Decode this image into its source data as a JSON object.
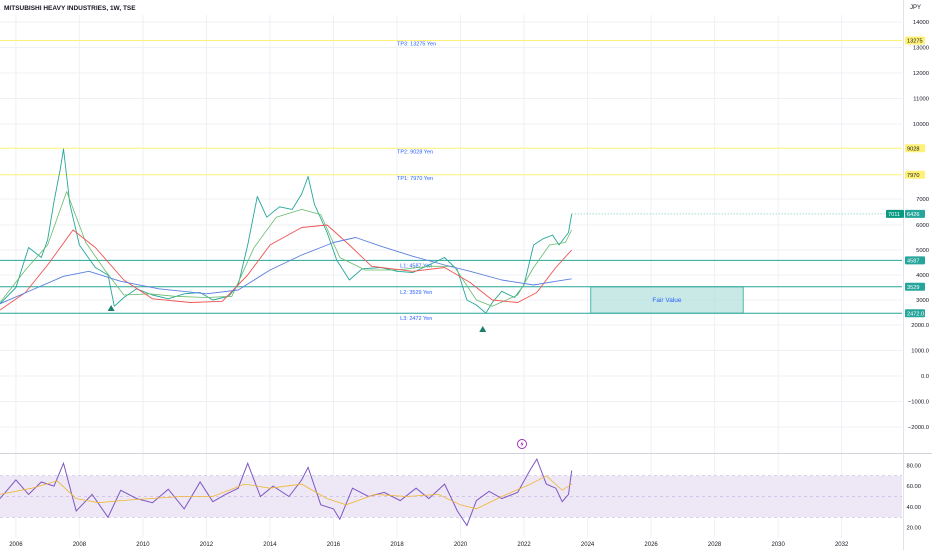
{
  "header": {
    "title": "MITSUBISHI HEAVY INDUSTRIES, 1W, TSE",
    "currency": "JPY"
  },
  "colors": {
    "grid": "#eef0f4",
    "target": "#fff176",
    "level": "#26a69a",
    "price": "#26a69a",
    "sma_fast": "#66bb6a",
    "sma_mid": "#ef5350",
    "sma_slow": "#5b7fe0",
    "label_text": "#2962ff",
    "zone_fill": "#b2dfdb",
    "rsi": "#7e57c2",
    "rsi_band": "#ede7f6",
    "rsi_ma": "#f0b72f",
    "axis_text": "#131722",
    "badge": "#26a69a"
  },
  "chart_data": [
    {
      "type": "line",
      "panel": "price",
      "x_range": [
        2005.5,
        2033.9
      ],
      "x_ticks": [
        "2006",
        "2008",
        "2010",
        "2012",
        "2014",
        "2016",
        "2018",
        "2020",
        "2022",
        "2024",
        "2026",
        "2028",
        "2030",
        "2032"
      ],
      "y_ticks": [
        "14000",
        "13000",
        "12000",
        "11000",
        "10000",
        "7000",
        "6000",
        "5000",
        "4000",
        "3000",
        "2000.0",
        "1000.0",
        "0.0",
        "−1000.0",
        "−2000.0"
      ],
      "y_breaks": [
        [
          -2000,
          0,
          2000,
          3000,
          4000,
          5000,
          6000,
          7000,
          8000,
          10000,
          14000
        ]
      ],
      "series": [
        {
          "role": "price",
          "points": [
            [
              2005.5,
              2850
            ],
            [
              2006.0,
              3500
            ],
            [
              2006.4,
              5100
            ],
            [
              2006.8,
              4700
            ],
            [
              2007.0,
              5400
            ],
            [
              2007.2,
              6900
            ],
            [
              2007.4,
              8200
            ],
            [
              2007.5,
              9000
            ],
            [
              2007.7,
              6800
            ],
            [
              2008.0,
              5200
            ],
            [
              2008.5,
              4300
            ],
            [
              2008.9,
              4000
            ],
            [
              2009.1,
              2750
            ],
            [
              2009.4,
              3100
            ],
            [
              2009.8,
              3450
            ],
            [
              2010.3,
              3200
            ],
            [
              2010.8,
              3050
            ],
            [
              2011.3,
              3250
            ],
            [
              2011.8,
              3300
            ],
            [
              2012.2,
              3000
            ],
            [
              2012.7,
              3150
            ],
            [
              2013.0,
              3600
            ],
            [
              2013.3,
              5200
            ],
            [
              2013.6,
              7100
            ],
            [
              2013.9,
              6300
            ],
            [
              2014.3,
              6700
            ],
            [
              2014.7,
              6600
            ],
            [
              2015.0,
              7200
            ],
            [
              2015.2,
              7900
            ],
            [
              2015.4,
              6800
            ],
            [
              2015.8,
              5700
            ],
            [
              2016.1,
              4600
            ],
            [
              2016.5,
              3800
            ],
            [
              2016.9,
              4250
            ],
            [
              2017.5,
              4300
            ],
            [
              2018.0,
              4150
            ],
            [
              2018.5,
              4100
            ],
            [
              2019.0,
              4400
            ],
            [
              2019.5,
              4700
            ],
            [
              2019.9,
              4200
            ],
            [
              2020.2,
              3000
            ],
            [
              2020.5,
              2800
            ],
            [
              2020.8,
              2472
            ],
            [
              2021.0,
              2900
            ],
            [
              2021.3,
              3350
            ],
            [
              2021.7,
              3100
            ],
            [
              2022.0,
              3600
            ],
            [
              2022.3,
              5200
            ],
            [
              2022.6,
              5450
            ],
            [
              2022.9,
              5600
            ],
            [
              2023.1,
              5200
            ],
            [
              2023.4,
              5700
            ],
            [
              2023.5,
              6426
            ]
          ]
        },
        {
          "role": "sma_fast",
          "points": [
            [
              2005.5,
              2900
            ],
            [
              2006.3,
              4200
            ],
            [
              2007.0,
              5200
            ],
            [
              2007.6,
              7300
            ],
            [
              2008.2,
              5300
            ],
            [
              2008.8,
              4200
            ],
            [
              2009.4,
              3200
            ],
            [
              2010.2,
              3250
            ],
            [
              2011.0,
              3150
            ],
            [
              2012.0,
              3100
            ],
            [
              2012.8,
              3150
            ],
            [
              2013.5,
              5100
            ],
            [
              2014.2,
              6300
            ],
            [
              2015.0,
              6600
            ],
            [
              2015.6,
              6400
            ],
            [
              2016.2,
              4700
            ],
            [
              2017.0,
              4200
            ],
            [
              2018.0,
              4200
            ],
            [
              2019.0,
              4350
            ],
            [
              2019.8,
              4350
            ],
            [
              2020.5,
              3000
            ],
            [
              2021.0,
              2750
            ],
            [
              2021.8,
              3200
            ],
            [
              2022.3,
              4300
            ],
            [
              2022.8,
              5200
            ],
            [
              2023.3,
              5300
            ],
            [
              2023.5,
              5800
            ]
          ]
        },
        {
          "role": "sma_mid",
          "points": [
            [
              2005.5,
              2600
            ],
            [
              2006.3,
              3300
            ],
            [
              2007.0,
              4400
            ],
            [
              2007.8,
              5800
            ],
            [
              2008.5,
              5100
            ],
            [
              2009.4,
              3800
            ],
            [
              2010.3,
              3050
            ],
            [
              2011.5,
              2900
            ],
            [
              2012.5,
              2950
            ],
            [
              2013.3,
              4000
            ],
            [
              2014.0,
              5200
            ],
            [
              2015.0,
              5900
            ],
            [
              2015.8,
              6000
            ],
            [
              2016.5,
              5200
            ],
            [
              2017.2,
              4350
            ],
            [
              2018.5,
              4150
            ],
            [
              2019.5,
              4300
            ],
            [
              2020.3,
              3700
            ],
            [
              2021.0,
              3000
            ],
            [
              2021.8,
              2900
            ],
            [
              2022.4,
              3300
            ],
            [
              2023.0,
              4300
            ],
            [
              2023.5,
              5000
            ]
          ]
        },
        {
          "role": "sma_slow",
          "points": [
            [
              2005.5,
              2850
            ],
            [
              2006.5,
              3400
            ],
            [
              2007.5,
              3950
            ],
            [
              2008.3,
              4150
            ],
            [
              2009.3,
              3750
            ],
            [
              2010.5,
              3450
            ],
            [
              2012.0,
              3250
            ],
            [
              2013.0,
              3400
            ],
            [
              2014.0,
              4200
            ],
            [
              2015.0,
              4800
            ],
            [
              2016.0,
              5300
            ],
            [
              2016.7,
              5500
            ],
            [
              2017.5,
              5150
            ],
            [
              2018.5,
              4750
            ],
            [
              2019.5,
              4400
            ],
            [
              2020.3,
              4150
            ],
            [
              2021.3,
              3800
            ],
            [
              2022.3,
              3600
            ],
            [
              2023.0,
              3750
            ],
            [
              2023.5,
              3850
            ]
          ]
        }
      ],
      "horizontal_levels": [
        {
          "label": "TP3: 13275 Yen",
          "value": 13275,
          "badge": "13275",
          "role": "target"
        },
        {
          "label": "TP2: 9028 Yen",
          "value": 9028,
          "badge": "9028",
          "role": "target"
        },
        {
          "label": "TP1: 7970 Yen",
          "value": 7970,
          "badge": "7970",
          "role": "target"
        },
        {
          "label": "L1: 4587 Yen",
          "value": 4587,
          "badge": "4587",
          "role": "level"
        },
        {
          "label": "L2: 3529 Yen",
          "value": 3529,
          "badge": "3529",
          "role": "level"
        },
        {
          "label": "L3: 2472 Yen",
          "value": 2472,
          "badge": "2472.0",
          "role": "level"
        }
      ],
      "current_value_badges": [
        "7011",
        "6426"
      ],
      "zone": {
        "label": "Fair Value",
        "x_start": 2024.1,
        "x_end": 2028.9,
        "y_low": 2472,
        "y_high": 3529
      },
      "markers": [
        {
          "x": 2009.0,
          "shape": "triangle-up"
        },
        {
          "x": 2020.7,
          "shape": "triangle-up"
        }
      ]
    },
    {
      "type": "line",
      "panel": "rsi",
      "y_ticks": [
        "80.00",
        "60.00",
        "40.00",
        "20.00"
      ],
      "band": [
        30,
        70
      ],
      "series": [
        {
          "role": "rsi",
          "values": [
            [
              2005.5,
              48
            ],
            [
              2006.0,
              66
            ],
            [
              2006.4,
              52
            ],
            [
              2006.8,
              64
            ],
            [
              2007.2,
              60
            ],
            [
              2007.5,
              82
            ],
            [
              2007.9,
              36
            ],
            [
              2008.4,
              52
            ],
            [
              2008.9,
              30
            ],
            [
              2009.3,
              56
            ],
            [
              2009.8,
              48
            ],
            [
              2010.3,
              44
            ],
            [
              2010.8,
              57
            ],
            [
              2011.3,
              38
            ],
            [
              2011.8,
              64
            ],
            [
              2012.2,
              45
            ],
            [
              2012.6,
              52
            ],
            [
              2013.0,
              58
            ],
            [
              2013.3,
              82
            ],
            [
              2013.7,
              50
            ],
            [
              2014.1,
              60
            ],
            [
              2014.6,
              50
            ],
            [
              2015.0,
              66
            ],
            [
              2015.2,
              78
            ],
            [
              2015.6,
              42
            ],
            [
              2016.0,
              38
            ],
            [
              2016.2,
              28
            ],
            [
              2016.6,
              58
            ],
            [
              2017.1,
              50
            ],
            [
              2017.6,
              54
            ],
            [
              2018.1,
              46
            ],
            [
              2018.6,
              58
            ],
            [
              2019.0,
              48
            ],
            [
              2019.5,
              62
            ],
            [
              2019.9,
              36
            ],
            [
              2020.2,
              22
            ],
            [
              2020.5,
              46
            ],
            [
              2020.9,
              55
            ],
            [
              2021.3,
              48
            ],
            [
              2021.8,
              54
            ],
            [
              2022.2,
              76
            ],
            [
              2022.4,
              86
            ],
            [
              2022.7,
              62
            ],
            [
              2023.0,
              58
            ],
            [
              2023.2,
              45
            ],
            [
              2023.4,
              52
            ],
            [
              2023.5,
              75
            ]
          ]
        },
        {
          "role": "rsi_ma",
          "values": [
            [
              2005.5,
              52
            ],
            [
              2006.5,
              58
            ],
            [
              2007.3,
              65
            ],
            [
              2007.9,
              48
            ],
            [
              2008.6,
              44
            ],
            [
              2009.3,
              46
            ],
            [
              2010.2,
              48
            ],
            [
              2011.2,
              50
            ],
            [
              2012.2,
              50
            ],
            [
              2013.2,
              62
            ],
            [
              2014.0,
              58
            ],
            [
              2015.0,
              62
            ],
            [
              2015.8,
              48
            ],
            [
              2016.4,
              42
            ],
            [
              2017.3,
              52
            ],
            [
              2018.3,
              50
            ],
            [
              2019.3,
              52
            ],
            [
              2020.0,
              42
            ],
            [
              2020.5,
              38
            ],
            [
              2021.3,
              50
            ],
            [
              2022.2,
              62
            ],
            [
              2022.7,
              70
            ],
            [
              2023.2,
              56
            ],
            [
              2023.5,
              62
            ]
          ]
        }
      ]
    }
  ]
}
